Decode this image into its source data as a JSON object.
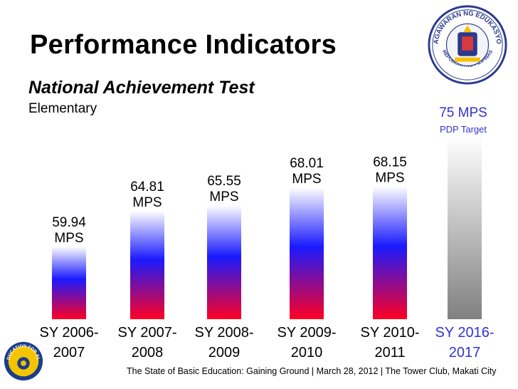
{
  "slide": {
    "title": "Performance Indicators",
    "subtitle": "National Achievement Test",
    "level": "Elementary",
    "footer": "The State of Basic Education: Gaining Ground | March 28, 2012 | The Tower Club, Makati City"
  },
  "logos": {
    "seal_top_text": "KAGAWARAN NG EDUKASYON",
    "seal_bottom_text": "REPUBLIKA NG PILIPINAS",
    "edu_logo_text": "EDUCATION FOR ALL"
  },
  "chart_data": {
    "type": "bar",
    "title": "National Achievement Test",
    "subtitle": "Elementary",
    "unit": "MPS",
    "ylim": [
      50,
      79
    ],
    "categories": [
      [
        "SY 2006-",
        "2007"
      ],
      [
        "SY 2007-",
        "2008"
      ],
      [
        "SY 2008-",
        "2009"
      ],
      [
        "SY 2009-",
        "2010"
      ],
      [
        "SY 2010-",
        "2011"
      ],
      [
        "SY 2016-",
        "2017"
      ]
    ],
    "values": [
      59.94,
      64.81,
      65.55,
      68.01,
      68.15,
      75
    ],
    "value_labels": [
      [
        "59.94",
        "MPS"
      ],
      [
        "64.81",
        "MPS"
      ],
      [
        "65.55",
        "MPS"
      ],
      [
        "68.01",
        "MPS"
      ],
      [
        "68.15",
        "MPS"
      ],
      [
        "75 MPS",
        "PDP Target"
      ]
    ],
    "target_index": 5,
    "colors": {
      "bar_top": "#ffffff",
      "bar_mid": "#1a1aff",
      "bar_bottom": "#ff0022",
      "target_top": "#ffffff",
      "target_bottom": "#808080",
      "target_text": "#3333cc",
      "label_text": "#000000"
    }
  }
}
